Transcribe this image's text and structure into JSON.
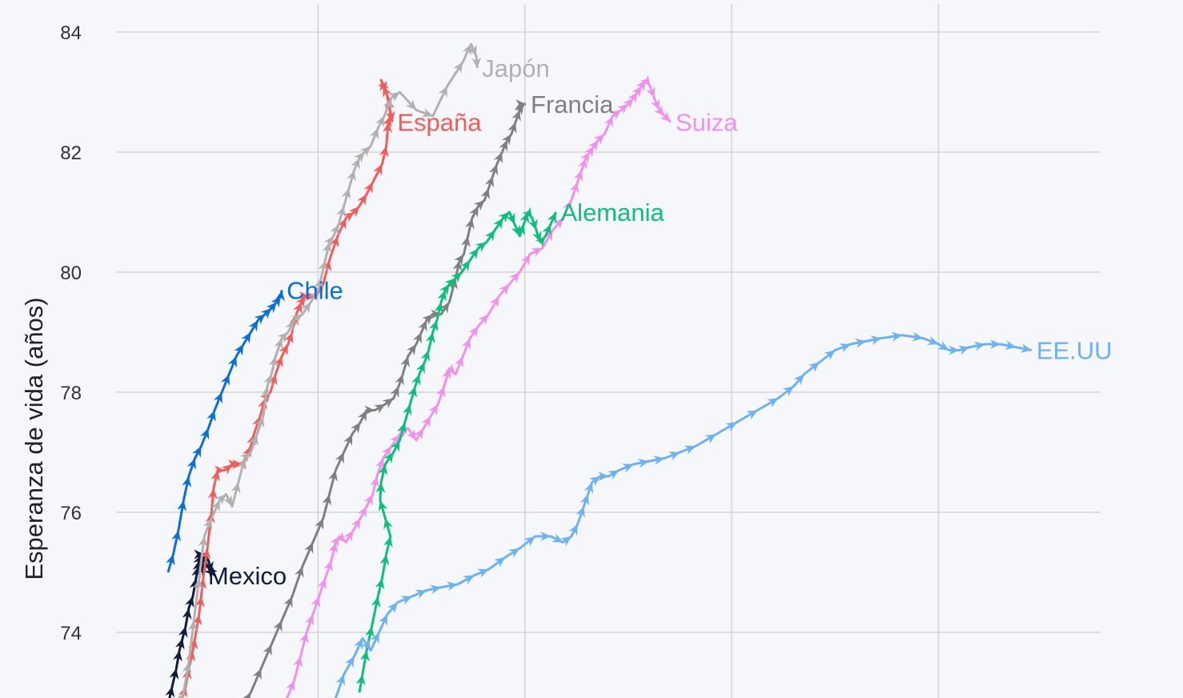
{
  "chart_data": {
    "type": "line",
    "title": "",
    "xlabel": "",
    "ylabel": "Esperanza de vida (años)",
    "ylim": [
      72.9,
      84.5
    ],
    "yticks": [
      74,
      76,
      78,
      80,
      82,
      84
    ],
    "xlim": [
      0,
      10000
    ],
    "xgrid": [
      1450,
      3450,
      5450,
      7450
    ],
    "grid": true,
    "legend": "none",
    "arrows": true,
    "series": [
      {
        "name": "Chile",
        "color": "#0a6fd8",
        "x": [
          0,
          50,
          100,
          150,
          200,
          260,
          320,
          390,
          450,
          520,
          590,
          660,
          730,
          800,
          870,
          940,
          1000,
          1050,
          1090,
          1100
        ],
        "y": [
          75.0,
          75.3,
          75.7,
          76.2,
          76.6,
          76.9,
          77.1,
          77.4,
          77.7,
          78.0,
          78.3,
          78.6,
          78.8,
          79.0,
          79.2,
          79.3,
          79.4,
          79.5,
          79.6,
          79.7
        ]
      },
      {
        "name": "Mexico",
        "color": "#111d3d",
        "x": [
          0,
          40,
          80,
          110,
          140,
          170,
          200,
          240,
          270,
          290,
          300,
          320,
          350,
          390,
          420,
          450,
          380,
          330,
          340
        ],
        "y": [
          72.8,
          73.1,
          73.4,
          73.7,
          73.9,
          74.1,
          74.4,
          74.6,
          74.9,
          75.1,
          75.2,
          75.3,
          75.3,
          75.2,
          75.0,
          74.95,
          75.1,
          75.3,
          74.95
        ]
      },
      {
        "name": "España",
        "color": "#f45b5b",
        "x": [
          120,
          170,
          200,
          240,
          260,
          300,
          320,
          340,
          380,
          420,
          440,
          480,
          550,
          620,
          680,
          720,
          750,
          800,
          830,
          890,
          940,
          990,
          1040,
          1100,
          1160,
          1200,
          1240,
          1290,
          1330,
          1370,
          1430,
          1500,
          1560,
          1640,
          1720,
          1800,
          1850,
          1920,
          1980,
          2070,
          2110,
          2130,
          2150,
          2130,
          2080,
          2060,
          2110,
          2170
        ],
        "y": [
          72.8,
          73.1,
          73.4,
          73.7,
          73.9,
          74.3,
          74.6,
          74.9,
          75.4,
          76.0,
          76.4,
          76.7,
          76.7,
          76.8,
          76.8,
          76.8,
          76.9,
          77.1,
          77.3,
          77.6,
          77.9,
          78.0,
          78.3,
          78.6,
          78.8,
          79.0,
          79.3,
          79.5,
          79.6,
          79.6,
          79.6,
          79.8,
          80.2,
          80.6,
          80.9,
          81.0,
          81.1,
          81.3,
          81.5,
          81.8,
          82.1,
          82.5,
          82.6,
          82.9,
          83.1,
          83.2,
          83.0,
          82.5
        ]
      },
      {
        "name": "Japón",
        "color": "#b1b1b1",
        "x": [
          100,
          150,
          200,
          250,
          300,
          350,
          420,
          500,
          560,
          620,
          680,
          740,
          800,
          860,
          920,
          960,
          1000,
          1040,
          1100,
          1160,
          1220,
          1300,
          1380,
          1450,
          1480,
          1520,
          1560,
          1600,
          1650,
          1700,
          1750,
          1800,
          1850,
          1900,
          1960,
          2030,
          2090,
          2160,
          2240,
          2400,
          2560,
          2700,
          2850,
          2930,
          2980,
          2990
        ],
        "y": [
          72.8,
          73.0,
          73.5,
          74.2,
          74.9,
          75.6,
          75.9,
          76.2,
          76.3,
          76.1,
          76.5,
          76.9,
          77.0,
          77.3,
          77.6,
          78.1,
          78.3,
          78.6,
          78.9,
          79.0,
          79.2,
          79.3,
          79.5,
          79.7,
          79.9,
          80.2,
          80.5,
          80.6,
          80.8,
          81.1,
          81.4,
          81.7,
          81.9,
          82.0,
          82.1,
          82.4,
          82.6,
          82.9,
          83.0,
          82.7,
          82.6,
          83.1,
          83.5,
          83.8,
          83.6,
          83.4
        ]
      },
      {
        "name": "Francia",
        "color": "#808080",
        "x": [
          700,
          800,
          900,
          1000,
          1100,
          1200,
          1300,
          1400,
          1500,
          1560,
          1620,
          1700,
          1780,
          1860,
          1920,
          2000,
          2100,
          2180,
          2230,
          2270,
          2320,
          2400,
          2450,
          2500,
          2560,
          2640,
          2720,
          2780,
          2820,
          2860,
          2900,
          2940,
          3000,
          3060,
          3100,
          3140,
          3180,
          3230,
          3280,
          3320,
          3360,
          3400,
          3440,
          3460
        ],
        "y": [
          72.7,
          73.0,
          73.4,
          73.8,
          74.2,
          74.6,
          75.1,
          75.5,
          75.9,
          76.3,
          76.7,
          77.0,
          77.3,
          77.5,
          77.7,
          77.7,
          77.8,
          77.9,
          78.1,
          78.3,
          78.6,
          78.8,
          79.0,
          79.2,
          79.3,
          79.3,
          79.5,
          79.9,
          80.2,
          80.3,
          80.6,
          80.9,
          81.1,
          81.2,
          81.4,
          81.6,
          81.8,
          82.0,
          82.2,
          82.3,
          82.5,
          82.7,
          82.8,
          82.8
        ]
      },
      {
        "name": "Suiza",
        "color": "#f091ee",
        "x": [
          1150,
          1220,
          1280,
          1340,
          1400,
          1460,
          1520,
          1580,
          1620,
          1660,
          1720,
          1790,
          1860,
          1920,
          1980,
          2020,
          2080,
          2160,
          2240,
          2320,
          2400,
          2470,
          2540,
          2610,
          2670,
          2720,
          2780,
          2850,
          2920,
          3000,
          3100,
          3200,
          3300,
          3400,
          3500,
          3620,
          3720,
          3820,
          3900,
          3960,
          4000,
          4040,
          4080,
          4120,
          4160,
          4220,
          4300,
          4380,
          4450,
          4500,
          4540,
          4580,
          4620,
          4660,
          4700,
          4750,
          4800,
          4860
        ],
        "y": [
          72.9,
          73.2,
          73.6,
          74.0,
          74.3,
          74.6,
          74.9,
          75.2,
          75.5,
          75.6,
          75.5,
          75.7,
          75.9,
          76.1,
          76.3,
          76.6,
          76.9,
          77.1,
          77.3,
          77.4,
          77.2,
          77.4,
          77.6,
          77.8,
          78.1,
          78.4,
          78.3,
          78.6,
          78.9,
          79.1,
          79.3,
          79.6,
          79.8,
          80.0,
          80.3,
          80.4,
          80.7,
          80.9,
          81.2,
          81.5,
          81.7,
          81.9,
          82.0,
          82.1,
          82.2,
          82.3,
          82.6,
          82.7,
          82.8,
          82.9,
          83.0,
          83.1,
          83.2,
          83.1,
          82.9,
          82.7,
          82.6,
          82.5
        ]
      },
      {
        "name": "Alemania",
        "color": "#0bbf7d",
        "x": [
          1850,
          1880,
          1920,
          1970,
          2030,
          2070,
          2110,
          2150,
          2100,
          2050,
          2060,
          2100,
          2180,
          2240,
          2290,
          2340,
          2390,
          2430,
          2480,
          2520,
          2560,
          2600,
          2640,
          2680,
          2720,
          2780,
          2840,
          2920,
          3000,
          3080,
          3160,
          3240,
          3300,
          3350,
          3400,
          3440,
          3480,
          3520,
          3560,
          3600,
          3650,
          3700,
          3750
        ],
        "y": [
          73.0,
          73.3,
          73.7,
          74.1,
          74.6,
          74.9,
          75.3,
          75.6,
          75.9,
          76.2,
          76.5,
          76.8,
          77.0,
          77.2,
          77.5,
          77.8,
          78.1,
          78.3,
          78.5,
          78.7,
          79.0,
          79.2,
          79.5,
          79.7,
          79.8,
          79.9,
          80.0,
          80.2,
          80.4,
          80.5,
          80.7,
          80.9,
          81.0,
          80.8,
          80.6,
          80.8,
          81.0,
          80.9,
          80.7,
          80.5,
          80.6,
          80.8,
          81.0
        ]
      },
      {
        "name": "EE.UU",
        "color": "#6cb2f7",
        "x": [
          1600,
          1700,
          1800,
          1880,
          1960,
          2040,
          2120,
          2220,
          2360,
          2500,
          2640,
          2800,
          2960,
          3100,
          3260,
          3400,
          3550,
          3700,
          3820,
          3900,
          3960,
          4020,
          4060,
          4100,
          4180,
          4260,
          4360,
          4500,
          4650,
          4800,
          4950,
          5100,
          5300,
          5500,
          5700,
          5900,
          6050,
          6150,
          6300,
          6450,
          6600,
          6750,
          6900,
          7100,
          7300,
          7450,
          7550,
          7650,
          7750,
          7900,
          8050,
          8200,
          8350
        ],
        "y": [
          72.8,
          73.3,
          73.6,
          73.9,
          73.7,
          74.0,
          74.3,
          74.5,
          74.6,
          74.7,
          74.75,
          74.8,
          74.95,
          75.05,
          75.25,
          75.4,
          75.6,
          75.6,
          75.5,
          75.6,
          75.8,
          76.1,
          76.3,
          76.5,
          76.6,
          76.6,
          76.7,
          76.8,
          76.85,
          76.9,
          77.0,
          77.1,
          77.3,
          77.5,
          77.7,
          77.9,
          78.1,
          78.3,
          78.5,
          78.7,
          78.8,
          78.85,
          78.9,
          78.95,
          78.9,
          78.8,
          78.7,
          78.7,
          78.75,
          78.8,
          78.8,
          78.75,
          78.7
        ]
      }
    ]
  }
}
